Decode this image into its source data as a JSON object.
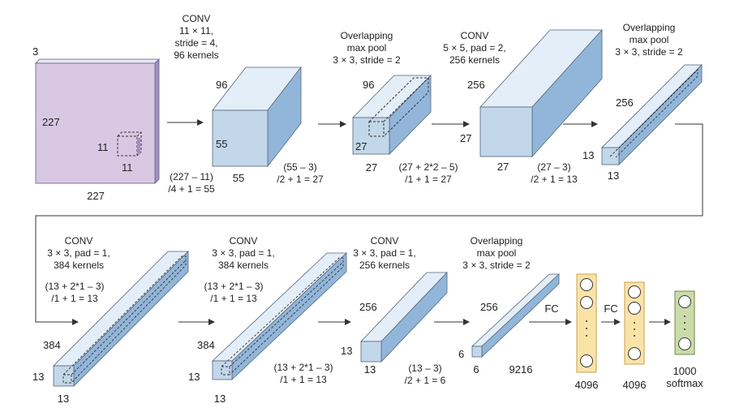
{
  "colors": {
    "input_front": "#d8c8e4",
    "input_side": "#a98cc7",
    "input_top": "#eee4f6",
    "box_front": "#c3d7ea",
    "box_top": "#e4eef8",
    "box_side": "#92b6d9",
    "edge": "#55657a",
    "fc_fill": "#fbe3a8",
    "fc_edge": "#c8a24a",
    "softmax_fill": "#cbdcaa",
    "softmax_edge": "#6f8a44",
    "arrow": "#333333"
  },
  "row1": {
    "input": {
      "channels": "3",
      "height": "227",
      "width": "227",
      "kernel_h": "11",
      "kernel_w": "11"
    },
    "conv1": {
      "title": "CONV\n11 × 11,\nstride = 4,\n96 kernels",
      "depth": "96",
      "height": "55",
      "width": "55",
      "formula": "(227 – 11)\n/4 + 1 = 55"
    },
    "pool1": {
      "title": "Overlapping\nmax pool\n3 × 3, stride = 2",
      "depth": "96",
      "height": "27",
      "width": "27",
      "formula": "(55 – 3)\n/2 + 1 = 27"
    },
    "conv2": {
      "title": "CONV\n5 × 5, pad = 2,\n256 kernels",
      "depth": "256",
      "height": "27",
      "width": "27",
      "formula": "(27 + 2*2 – 5)\n/1 + 1 = 27"
    },
    "pool2": {
      "title": "Overlapping\nmax pool\n3 × 3, stride = 2",
      "depth": "256",
      "height": "13",
      "width": "13",
      "formula": "(27 – 3)\n/2 + 1 = 13"
    }
  },
  "row2": {
    "conv3": {
      "title": "CONV\n3 × 3, pad = 1,\n384 kernels",
      "formula": "(13 + 2*1 – 3)\n/1 + 1 = 13",
      "depth": "384",
      "height": "13",
      "width": "13"
    },
    "conv4": {
      "title": "CONV\n3 × 3, pad = 1,\n384 kernels",
      "formula": "(13 + 2*1 – 3)\n/1 + 1 = 13",
      "depth": "384",
      "height": "13",
      "width": "13"
    },
    "conv5": {
      "title": "CONV\n3 × 3, pad = 1,\n256 kernels",
      "formula": "(13 + 2*1 – 3)\n/1 + 1 = 13",
      "depth": "256",
      "height": "13",
      "width": "13"
    },
    "pool3": {
      "title": "Overlapping\nmax pool\n3 × 3, stride = 2",
      "formula": "(13 – 3)\n/2 + 1 = 6",
      "depth": "256",
      "height": "6",
      "width": "6",
      "flatten": "9216"
    },
    "fc1": {
      "label": "FC",
      "size": "4096"
    },
    "fc2": {
      "label": "FC",
      "size": "4096"
    },
    "softmax": {
      "size": "1000",
      "name": "softmax"
    }
  }
}
